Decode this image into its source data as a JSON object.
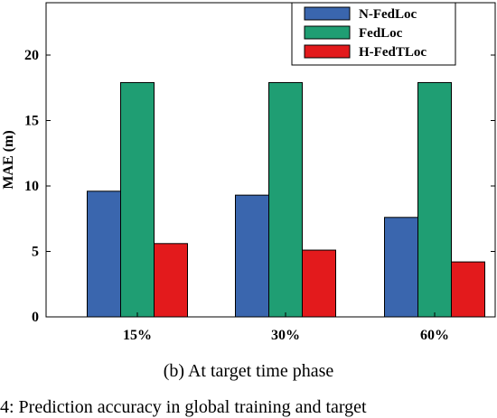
{
  "chart_data": {
    "type": "bar",
    "categories": [
      "15%",
      "30%",
      "60%"
    ],
    "series": [
      {
        "name": "N-FedLoc",
        "values": [
          9.6,
          9.3,
          7.6
        ],
        "color": "#3a66ae"
      },
      {
        "name": "FedLoc",
        "values": [
          17.9,
          17.9,
          17.9
        ],
        "color": "#1f9e73"
      },
      {
        "name": "H-FedTLoc",
        "values": [
          5.6,
          5.1,
          4.2
        ],
        "color": "#e31a1c"
      }
    ],
    "ylabel": "MAE (m)",
    "xlabel": "",
    "ylim": [
      0,
      24
    ],
    "yticks": [
      0,
      5,
      10,
      15,
      20
    ],
    "legend_position": "top-right",
    "grid": false
  },
  "caption": "(b) At target time phase",
  "footnote": "4: Prediction accuracy in global training and target"
}
